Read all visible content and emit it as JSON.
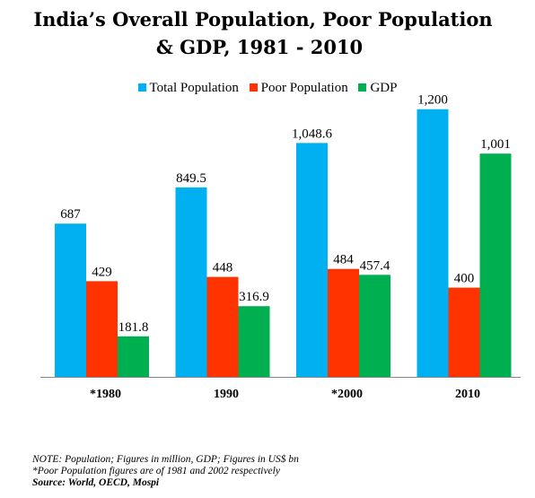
{
  "chart_data": {
    "type": "bar",
    "title_line1": "India’s Overall Population, Poor Population",
    "title_line2": "& GDP, 1981 - 2010",
    "categories": [
      "*1980",
      "1990",
      "*2000",
      "2010"
    ],
    "series": [
      {
        "name": "Total Population",
        "color": "#00b0f0",
        "values": [
          687,
          849.5,
          1048.6,
          1200
        ],
        "labels": [
          "687",
          "849.5",
          "1,048.6",
          "1,200"
        ]
      },
      {
        "name": "Poor Population",
        "color": "#ff3300",
        "values": [
          429,
          448,
          484,
          400
        ],
        "labels": [
          "429",
          "448",
          "484",
          "400"
        ]
      },
      {
        "name": "GDP",
        "color": "#00b050",
        "values": [
          181.8,
          316.9,
          457.4,
          1001
        ],
        "labels": [
          "181.8",
          "316.9",
          "457.4",
          "1,001"
        ]
      }
    ],
    "ylim": [
      0,
      1400
    ],
    "legend_position": "top",
    "grid": false
  },
  "notes": {
    "line1": "NOTE: Population; Figures in million, GDP; Figures in US$ bn",
    "line2": "*Poor Population figures are of 1981 and 2002 respectively",
    "source": "Source: World, OECD, Mospi"
  }
}
